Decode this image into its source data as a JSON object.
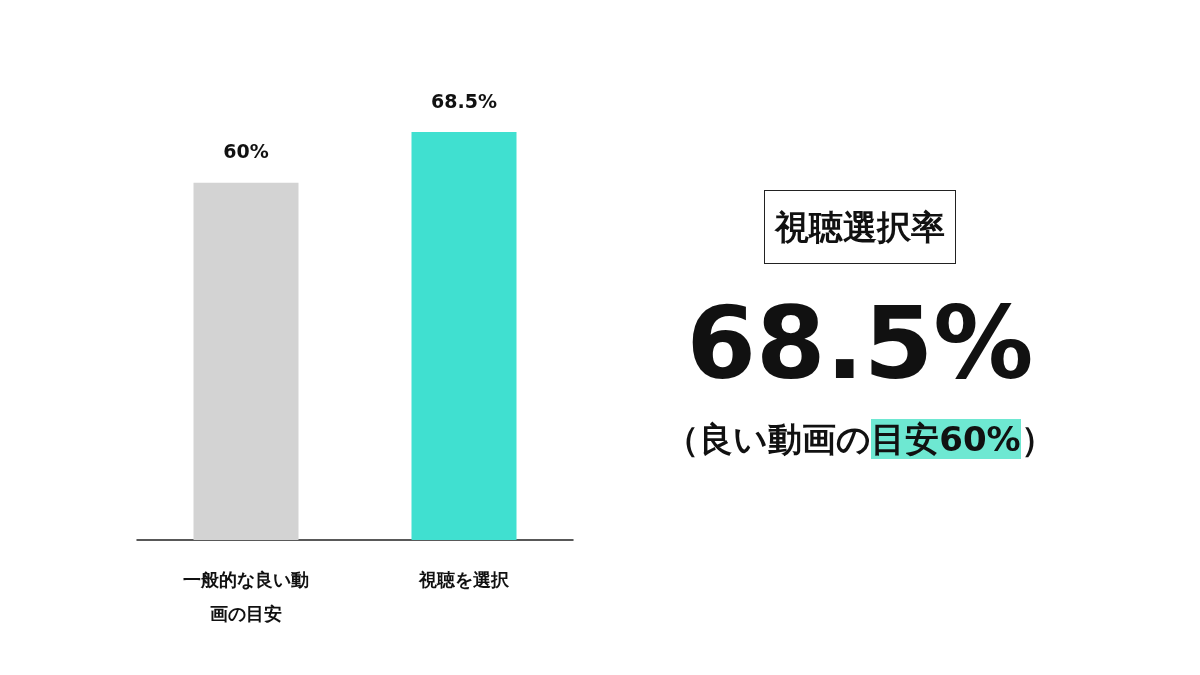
{
  "chart_data": {
    "type": "bar",
    "categories": [
      "一般的な良い動画の目安",
      "視聴を選択"
    ],
    "values": [
      60,
      68.5
    ],
    "colors": [
      "#d3d3d3",
      "#40e0d0"
    ],
    "value_labels": [
      "60%",
      "68.5%"
    ],
    "grid": false,
    "annotations": [
      "視聴選択率",
      "68.5%",
      "（良い動画の",
      "目安60%",
      "）"
    ]
  }
}
